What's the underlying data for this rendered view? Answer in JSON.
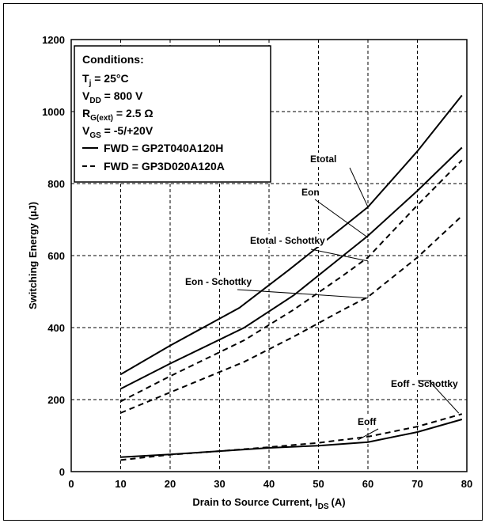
{
  "chart_data": {
    "type": "line",
    "xlabel": "Drain to Source Current, I",
    "xlabel_sub": "DS",
    "xlabel_unit": "(A)",
    "ylabel": "Switching Energy (µJ)",
    "xlim": [
      0,
      80
    ],
    "ylim": [
      0,
      1200
    ],
    "xticks": [
      "0",
      "10",
      "20",
      "30",
      "40",
      "50",
      "60",
      "70",
      "80"
    ],
    "yticks": [
      "0",
      "200",
      "400",
      "600",
      "800",
      "1000",
      "1200"
    ],
    "grid": "dashed",
    "legend": {
      "placement": "top-left",
      "title": "Conditions:",
      "lines": [
        {
          "main": "T",
          "sub": "j",
          "rest": " = 25°C"
        },
        {
          "main": "V",
          "sub": "DD",
          "rest": " = 800 V"
        },
        {
          "main": "R",
          "sub": "G(ext)",
          "rest": " = 2.5 Ω"
        },
        {
          "main": "V",
          "sub": "GS",
          "rest": " = -5/+20V"
        }
      ],
      "entries": [
        {
          "style": "solid",
          "label": "FWD = GP2T040A120H"
        },
        {
          "style": "dashed",
          "label": "FWD = GP3D020A120A"
        }
      ]
    },
    "series": [
      {
        "name": "Etotal",
        "style": "solid",
        "x": [
          10,
          20,
          34,
          44,
          55,
          60,
          70,
          79
        ],
        "y": [
          270,
          350,
          455,
          560,
          680,
          735,
          890,
          1045
        ]
      },
      {
        "name": "Eon",
        "style": "solid",
        "x": [
          10,
          20,
          35,
          45,
          55,
          60,
          70,
          79
        ],
        "y": [
          230,
          300,
          400,
          490,
          600,
          655,
          780,
          900
        ]
      },
      {
        "name": "Etotal - Schottky",
        "style": "dashed",
        "x": [
          10,
          20,
          35,
          45,
          55,
          60,
          70,
          79
        ],
        "y": [
          195,
          265,
          365,
          450,
          545,
          595,
          740,
          865
        ]
      },
      {
        "name": "Eon - Schottky",
        "style": "dashed",
        "x": [
          10,
          20,
          35,
          45,
          55,
          60,
          70,
          79
        ],
        "y": [
          163,
          220,
          305,
          375,
          450,
          485,
          595,
          710
        ]
      },
      {
        "name": "Eoff",
        "style": "solid",
        "x": [
          10,
          20,
          30,
          40,
          50,
          60,
          70,
          79
        ],
        "y": [
          40,
          48,
          57,
          66,
          72,
          82,
          110,
          145
        ]
      },
      {
        "name": "Eoff - Schottky",
        "style": "dashed",
        "x": [
          10,
          20,
          30,
          40,
          50,
          60,
          70,
          79
        ],
        "y": [
          32,
          47,
          57,
          68,
          80,
          97,
          125,
          160
        ]
      }
    ],
    "annotations": [
      {
        "text": "Etotal",
        "pointer_x": 60,
        "pointer_y": 735
      },
      {
        "text": "Eon",
        "pointer_x": 60,
        "pointer_y": 650
      },
      {
        "text": "Etotal - Schottky",
        "pointer_x": 60,
        "pointer_y": 585
      },
      {
        "text": "Eon - Schottky",
        "pointer_x": 60,
        "pointer_y": 482
      },
      {
        "text": "Eoff - Schottky",
        "pointer_x": 79,
        "pointer_y": 158
      },
      {
        "text": "Eoff",
        "pointer_x": 58,
        "pointer_y": 88
      }
    ]
  }
}
